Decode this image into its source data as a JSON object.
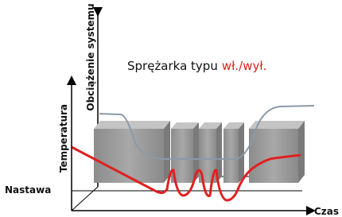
{
  "title": {
    "prefix": "Sprężarka typu",
    "highlight": "wł./wył."
  },
  "axes": {
    "outer_y": "Temperatura",
    "inner_y": "Obciążenie systemu",
    "x": "Czas"
  },
  "labels": {
    "setpoint": "Nastawa"
  }
}
